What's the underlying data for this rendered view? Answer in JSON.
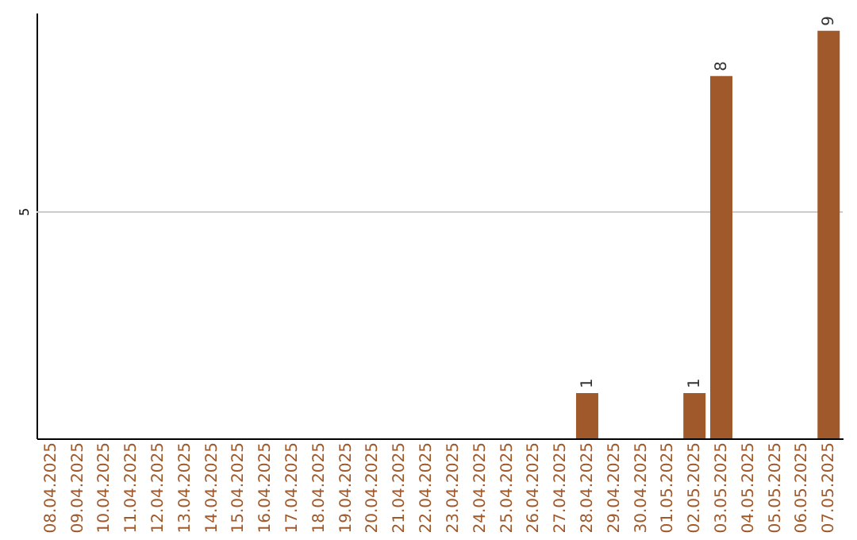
{
  "chart_data": {
    "type": "bar",
    "categories": [
      "08.04.2025",
      "09.04.2025",
      "10.04.2025",
      "11.04.2025",
      "12.04.2025",
      "13.04.2025",
      "14.04.2025",
      "15.04.2025",
      "16.04.2025",
      "17.04.2025",
      "18.04.2025",
      "19.04.2025",
      "20.04.2025",
      "21.04.2025",
      "22.04.2025",
      "23.04.2025",
      "24.04.2025",
      "25.04.2025",
      "26.04.2025",
      "27.04.2025",
      "28.04.2025",
      "29.04.2025",
      "30.04.2025",
      "01.05.2025",
      "02.05.2025",
      "03.05.2025",
      "04.05.2025",
      "05.05.2025",
      "06.05.2025",
      "07.05.2025"
    ],
    "values": [
      null,
      null,
      null,
      null,
      null,
      null,
      null,
      null,
      null,
      null,
      null,
      null,
      null,
      null,
      null,
      null,
      null,
      null,
      null,
      null,
      1,
      null,
      null,
      null,
      1,
      8,
      null,
      null,
      null,
      9
    ],
    "data_labels": true,
    "color": "#a0592a",
    "ylim": [
      0,
      9.4
    ],
    "ref_lines": [
      {
        "axis": "y",
        "value": 5,
        "label": "5",
        "color": "#cccccc"
      }
    ]
  }
}
